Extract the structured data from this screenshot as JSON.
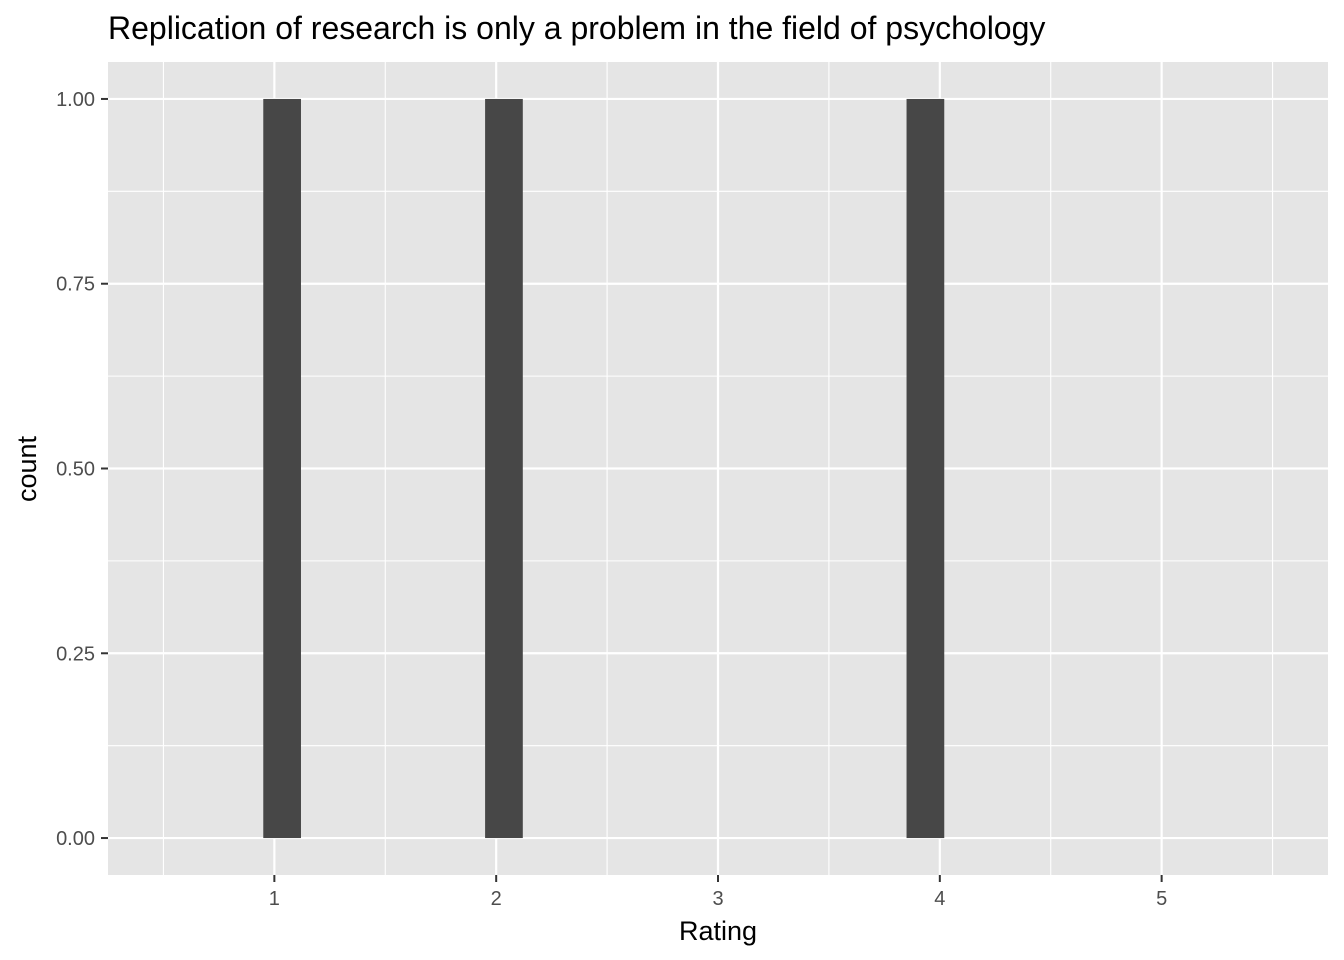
{
  "chart_data": {
    "type": "bar",
    "title": "Replication of research is only a problem in the field of psychology",
    "xlabel": "Rating",
    "ylabel": "count",
    "x_ticks": [
      1,
      2,
      3,
      4,
      5
    ],
    "y_ticks": [
      "0.00",
      "0.25",
      "0.50",
      "0.75",
      "1.00"
    ],
    "xlim": [
      0.25,
      5.75
    ],
    "ylim": [
      -0.05,
      1.05
    ],
    "bars": [
      {
        "x": 1.035,
        "width": 0.17,
        "value": 1
      },
      {
        "x": 2.035,
        "width": 0.17,
        "value": 1
      },
      {
        "x": 3.935,
        "width": 0.17,
        "value": 1
      }
    ],
    "grid": true,
    "colors": {
      "panel_background": "#e5e5e5",
      "grid": "#ffffff",
      "bar": "#474747",
      "tick": "#333333"
    }
  }
}
